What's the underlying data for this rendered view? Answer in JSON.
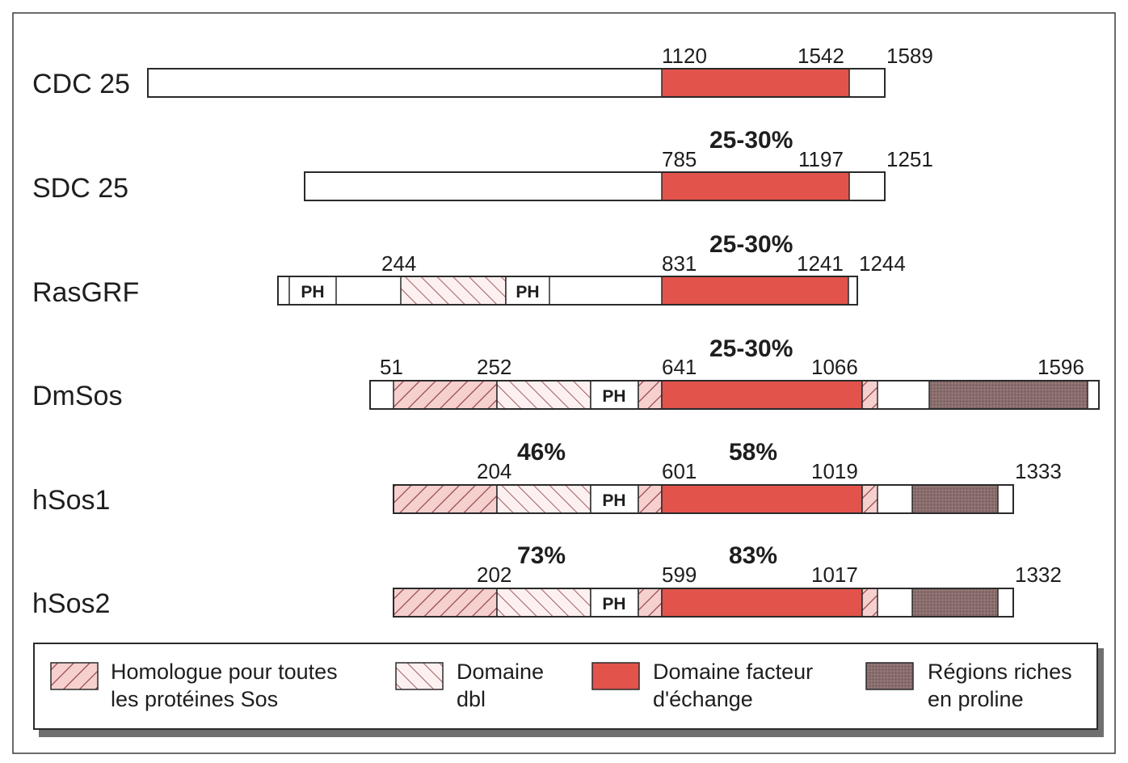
{
  "colors": {
    "exchange": "#e2534b",
    "proline": "#8a6e6e",
    "sos_hatch_bg": "#f6cfcf",
    "dbl_hatch_bg": "#fdf0f0",
    "hatch_line": "#8a3a3a"
  },
  "proteins": [
    {
      "name": "CDC 25",
      "labels": [
        {
          "text": "1120",
          "anchor": "exchange_start"
        },
        {
          "text": "1542",
          "anchor": "exchange_end"
        },
        {
          "text": "1589",
          "anchor": "end"
        }
      ],
      "percents": [],
      "segments": [
        {
          "type": "exchange",
          "from": 1120,
          "to": 1542
        }
      ],
      "length": 1589
    },
    {
      "name": "SDC 25",
      "labels": [
        {
          "text": "785"
        },
        {
          "text": "1197"
        },
        {
          "text": "1251"
        }
      ],
      "percents": [
        {
          "text": "25-30%"
        }
      ],
      "length": 1251
    },
    {
      "name": "RasGRF",
      "labels": [
        {
          "text": "244"
        },
        {
          "text": "831"
        },
        {
          "text": "1241"
        },
        {
          "text": "1244"
        }
      ],
      "percents": [
        {
          "text": "25-30%"
        }
      ],
      "ph_labels": [
        "PH",
        "PH"
      ],
      "length": 1244
    },
    {
      "name": "DmSos",
      "labels": [
        {
          "text": "51"
        },
        {
          "text": "252"
        },
        {
          "text": "641"
        },
        {
          "text": "1066"
        },
        {
          "text": "1596"
        }
      ],
      "percents": [
        {
          "text": "25-30%"
        }
      ],
      "ph_labels": [
        "PH"
      ],
      "length": 1596
    },
    {
      "name": "hSos1",
      "labels": [
        {
          "text": "204"
        },
        {
          "text": "601"
        },
        {
          "text": "1019"
        },
        {
          "text": "1333"
        }
      ],
      "percents": [
        {
          "text": "46%"
        },
        {
          "text": "58%"
        }
      ],
      "ph_labels": [
        "PH"
      ],
      "length": 1333
    },
    {
      "name": "hSos2",
      "labels": [
        {
          "text": "202"
        },
        {
          "text": "599"
        },
        {
          "text": "1017"
        },
        {
          "text": "1332"
        }
      ],
      "percents": [
        {
          "text": "73%"
        },
        {
          "text": "83%"
        }
      ],
      "ph_labels": [
        "PH"
      ],
      "length": 1332
    }
  ],
  "legend": [
    {
      "key": "sos_homology",
      "line1": "Homologue pour toutes",
      "line2": "les protéines Sos"
    },
    {
      "key": "dbl",
      "line1": "Domaine",
      "line2": "dbl"
    },
    {
      "key": "exchange",
      "line1": "Domaine facteur",
      "line2": "d'échange"
    },
    {
      "key": "proline",
      "line1": "Régions riches",
      "line2": "en proline"
    }
  ]
}
